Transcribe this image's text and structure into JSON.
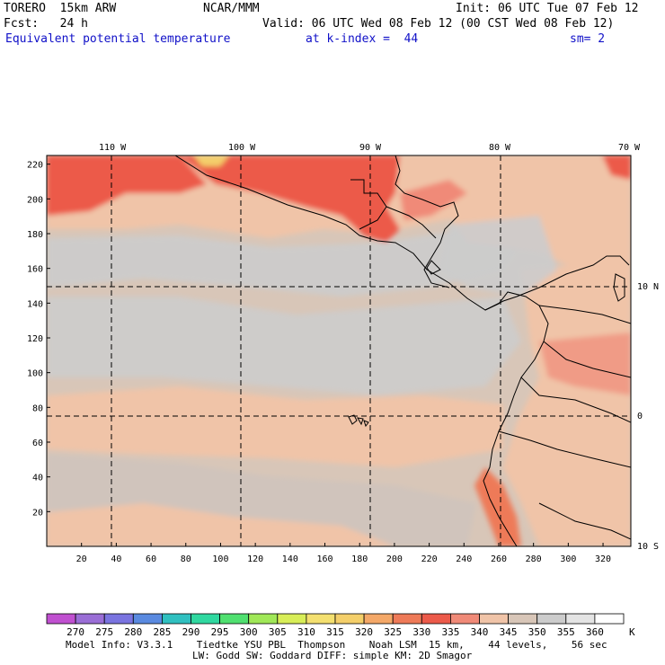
{
  "header": {
    "model": "TORERO  15km ARW",
    "org": "NCAR/MMM",
    "init": "Init: 06 UTC Tue 07 Feb 12",
    "fcst": "Fcst:   24 h",
    "valid": "Valid: 06 UTC Wed 08 Feb 12 (00 CST Wed 08 Feb 12)",
    "field": "Equivalent potential temperature",
    "level": "at k-index =  44",
    "smooth": "sm= 2"
  },
  "map": {
    "lon_labels": [
      "110 W",
      "100 W",
      "90 W",
      "80 W",
      "70 W"
    ],
    "lat_labels": [
      "10 N",
      "0",
      "10 S"
    ],
    "y_ticks": [
      20,
      40,
      60,
      80,
      100,
      120,
      140,
      160,
      180,
      200,
      220
    ],
    "x_ticks": [
      20,
      40,
      60,
      80,
      100,
      120,
      140,
      160,
      180,
      200,
      220,
      240,
      260,
      280,
      300,
      320
    ],
    "colors": {
      "c330": "#ec5a4a",
      "c335": "#f08a78",
      "c340": "#f0c4a8",
      "c345": "#d8c6b8",
      "c350": "#cccccc",
      "c320": "#f4cf6a",
      "coast": "#000000"
    }
  },
  "colorbar": {
    "labels": [
      "270",
      "275",
      "280",
      "285",
      "290",
      "295",
      "300",
      "305",
      "310",
      "315",
      "320",
      "325",
      "330",
      "335",
      "340",
      "345",
      "350",
      "355",
      "360"
    ],
    "unit": "K",
    "colors": [
      "#c050d0",
      "#9a6ed6",
      "#7a74e0",
      "#5a8ae0",
      "#30c0c0",
      "#30d8a0",
      "#50e070",
      "#a0e858",
      "#d8ee58",
      "#f4e070",
      "#f4cf6a",
      "#f4a868",
      "#ee7a58",
      "#ec5a4a",
      "#f08a78",
      "#f0c4a8",
      "#d8c6b8",
      "#cccccc",
      "#e4e4e4",
      "#ffffff"
    ]
  },
  "footer": {
    "line1": "Model Info: V3.3.1    Tiedtke YSU PBL  Thompson    Noah LSM  15 km,    44 levels,    56 sec",
    "line2": "LW: Godd SW: Goddard DIFF: simple KM: 2D Smagor"
  }
}
